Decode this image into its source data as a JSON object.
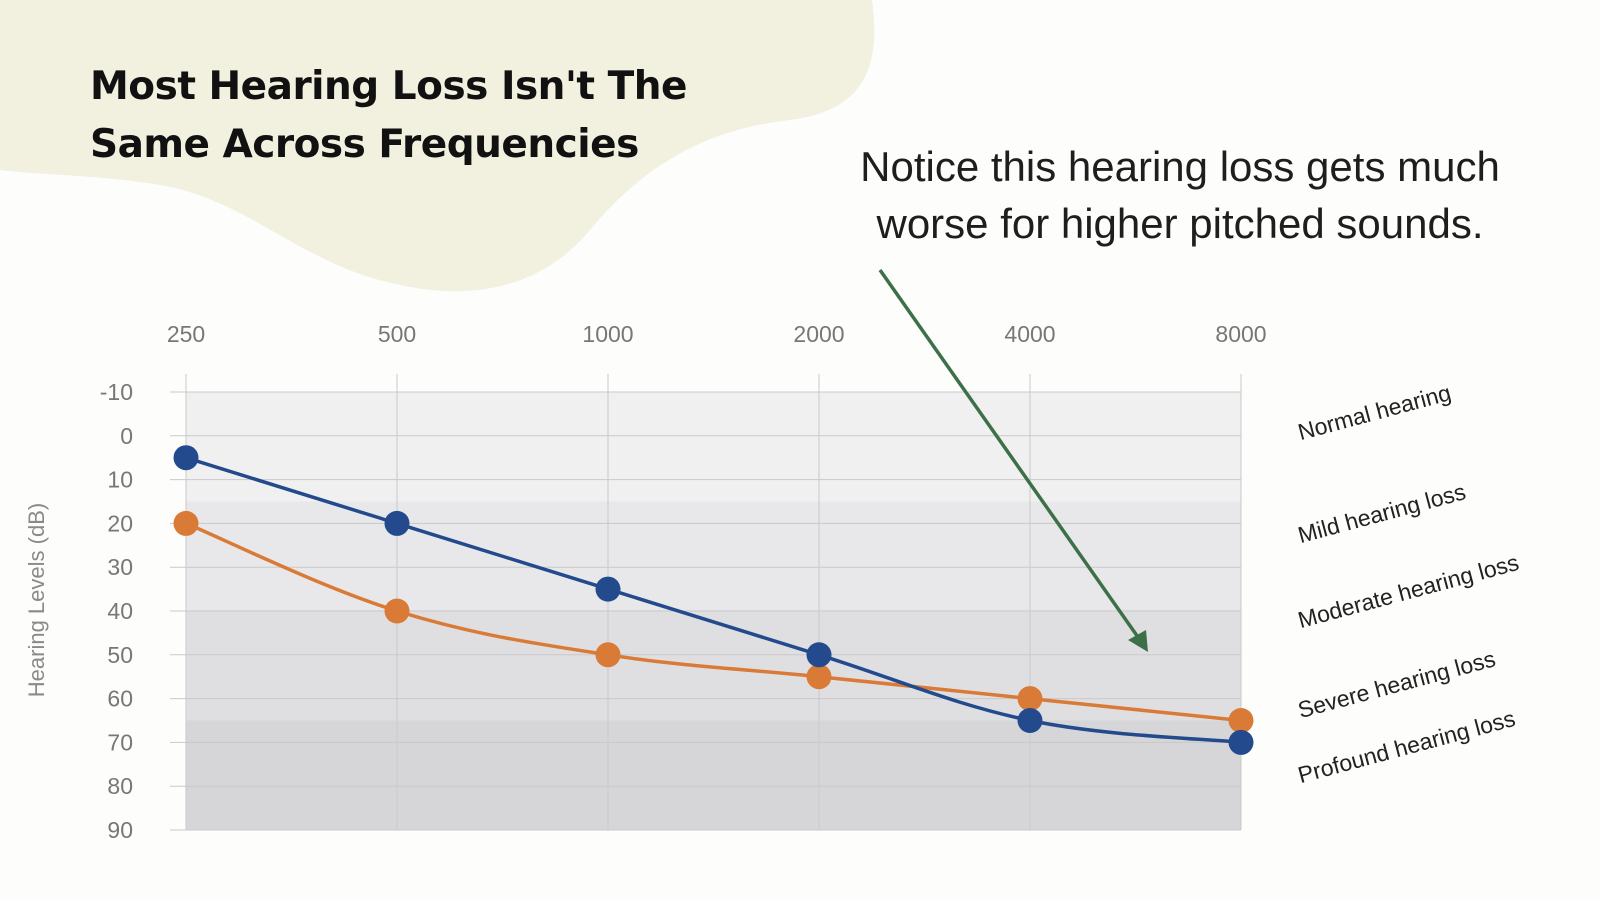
{
  "title": "Most Hearing Loss Isn't The Same Across Frequencies",
  "callout": "Notice this hearing loss gets much worse for higher pitched sounds.",
  "colors": {
    "blob": "#f2f0df",
    "series_blue": "#234a8c",
    "series_orange": "#d97b36",
    "arrow": "#3d7048"
  },
  "chart_data": {
    "type": "line",
    "x": [
      250,
      500,
      1000,
      2000,
      4000,
      8000
    ],
    "x_tick_labels": [
      "250",
      "500",
      "1000",
      "2000",
      "4000",
      "8000"
    ],
    "x_axis_position": "top",
    "ylabel": "Hearing Levels (dB)",
    "y_ticks": [
      -10,
      0,
      10,
      20,
      30,
      40,
      50,
      60,
      70,
      80,
      90
    ],
    "ylim": [
      -10,
      90
    ],
    "y_inverted": true,
    "grid": true,
    "series": [
      {
        "color": "#234a8c",
        "values": [
          5,
          20,
          35,
          50,
          65,
          70
        ]
      },
      {
        "color": "#d97b36",
        "values": [
          20,
          40,
          50,
          55,
          60,
          65
        ]
      }
    ],
    "bands": [
      {
        "label": "Normal hearing",
        "from": -10,
        "to": 15,
        "shade": "#f0f0f1"
      },
      {
        "label": "Mild hearing loss",
        "from": 15,
        "to": 40,
        "shade": "#e8e8ea"
      },
      {
        "label": "Moderate hearing loss",
        "from": 40,
        "to": 65,
        "shade": "#dfdfe1"
      },
      {
        "label": "Severe hearing loss",
        "from": 65,
        "to": 90,
        "shade": "#d6d6d8"
      },
      {
        "label": "Profound hearing loss",
        "from": null,
        "to": null,
        "shade": null
      }
    ]
  }
}
